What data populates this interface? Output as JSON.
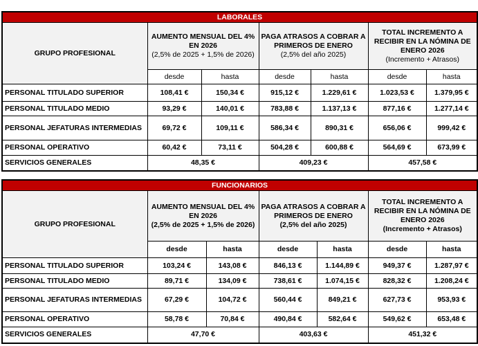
{
  "tables": [
    {
      "id": "laborales",
      "title": "LABORALES",
      "group_header": "GRUPO PROFESIONAL",
      "columns": [
        {
          "title": "AUMENTO MENSUAL DEL 4% EN 2026",
          "note": "(2,5% de 2025 + 1,5% de 2026)"
        },
        {
          "title": "PAGA ATRASOS A COBRAR A PRIMEROS DE ENERO",
          "note": "(2,5% del año 2025)"
        },
        {
          "title": "TOTAL INCREMENTO A RECIBIR EN LA NÓMINA DE ENERO 2026",
          "note": "(Incremento + Atrasos)"
        }
      ],
      "sub_labels": [
        "desde",
        "hasta"
      ],
      "rows": [
        {
          "label": "PERSONAL TITULADO SUPERIOR",
          "values": [
            "108,41 €",
            "150,34 €",
            "915,12 €",
            "1.229,61 €",
            "1.023,53 €",
            "1.379,95 €"
          ]
        },
        {
          "label": "PERSONAL TITULADO MEDIO",
          "values": [
            "93,29 €",
            "140,01 €",
            "783,88 €",
            "1.137,13 €",
            "877,16 €",
            "1.277,14 €"
          ]
        },
        {
          "label": "PERSONAL JEFATURAS INTERMEDIAS",
          "values": [
            "69,72 €",
            "109,11 €",
            "586,34 €",
            "890,31 €",
            "656,06 €",
            "999,42 €"
          ]
        },
        {
          "label": "PERSONAL OPERATIVO",
          "values": [
            "60,42 €",
            "73,11 €",
            "504,28 €",
            "600,88 €",
            "564,69 €",
            "673,99 €"
          ]
        },
        {
          "label": "SERVICIOS GENERALES",
          "merged": [
            "48,35 €",
            "409,23 €",
            "457,58 €"
          ]
        }
      ]
    },
    {
      "id": "funcionarios",
      "title": "FUNCIONARIOS",
      "group_header": "GRUPO PROFESIONAL",
      "columns": [
        {
          "title": "AUMENTO MENSUAL DEL 4% EN 2026",
          "note": "(2,5% de 2025 + 1,5% de 2026)"
        },
        {
          "title": "PAGA ATRASOS A COBRAR A PRIMEROS DE ENERO",
          "note": "(2,5% del año 2025)"
        },
        {
          "title": "TOTAL INCREMENTO A RECIBIR EN LA NÓMINA DE ENERO 2026",
          "note": "(Incremento + Atrasos)"
        }
      ],
      "sub_labels": [
        "desde",
        "hasta"
      ],
      "rows": [
        {
          "label": "PERSONAL TITULADO SUPERIOR",
          "values": [
            "103,24 €",
            "143,08 €",
            "846,13 €",
            "1.144,89 €",
            "949,37 €",
            "1.287,97 €"
          ]
        },
        {
          "label": "PERSONAL TITULADO MEDIO",
          "values": [
            "89,71 €",
            "134,09 €",
            "738,61 €",
            "1.074,15 €",
            "828,32 €",
            "1.208,24 €"
          ]
        },
        {
          "label": "PERSONAL JEFATURAS INTERMEDIAS",
          "values": [
            "67,29 €",
            "104,72 €",
            "560,44 €",
            "849,21 €",
            "627,73 €",
            "953,93 €"
          ]
        },
        {
          "label": "PERSONAL OPERATIVO",
          "values": [
            "58,78 €",
            "70,84 €",
            "490,84 €",
            "582,64 €",
            "549,62 €",
            "653,48 €"
          ]
        },
        {
          "label": "SERVICIOS GENERALES",
          "merged": [
            "47,70 €",
            "403,63 €",
            "451,32 €"
          ]
        }
      ]
    }
  ]
}
